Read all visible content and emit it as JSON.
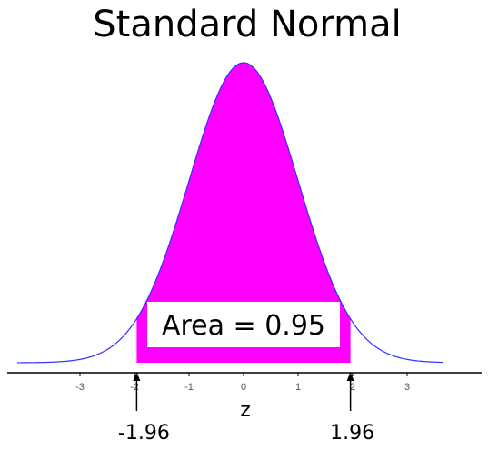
{
  "chart_data": {
    "type": "area",
    "title": "Standard Normal",
    "xlabel": "z",
    "ylabel": "",
    "xlim": [
      -4.15,
      3.65
    ],
    "x_ticks": [
      -3,
      -2,
      -1,
      0,
      1,
      2,
      3
    ],
    "x_tick_labels": [
      "-3",
      "-2",
      "-1",
      "0",
      "1",
      "2",
      "3"
    ],
    "grid": false,
    "distribution": {
      "name": "standard normal",
      "mean": 0,
      "sd": 1
    },
    "shaded_region": {
      "from": -1.96,
      "to": 1.96,
      "area": 0.95
    },
    "annotation": "Area = 0.95",
    "critical_values": [
      {
        "value": -1.96,
        "label": "-1.96"
      },
      {
        "value": 1.96,
        "label": "1.96"
      }
    ],
    "colors": {
      "curve": "#3030ff",
      "fill": "#ff00ff",
      "axis": "#000000"
    }
  }
}
